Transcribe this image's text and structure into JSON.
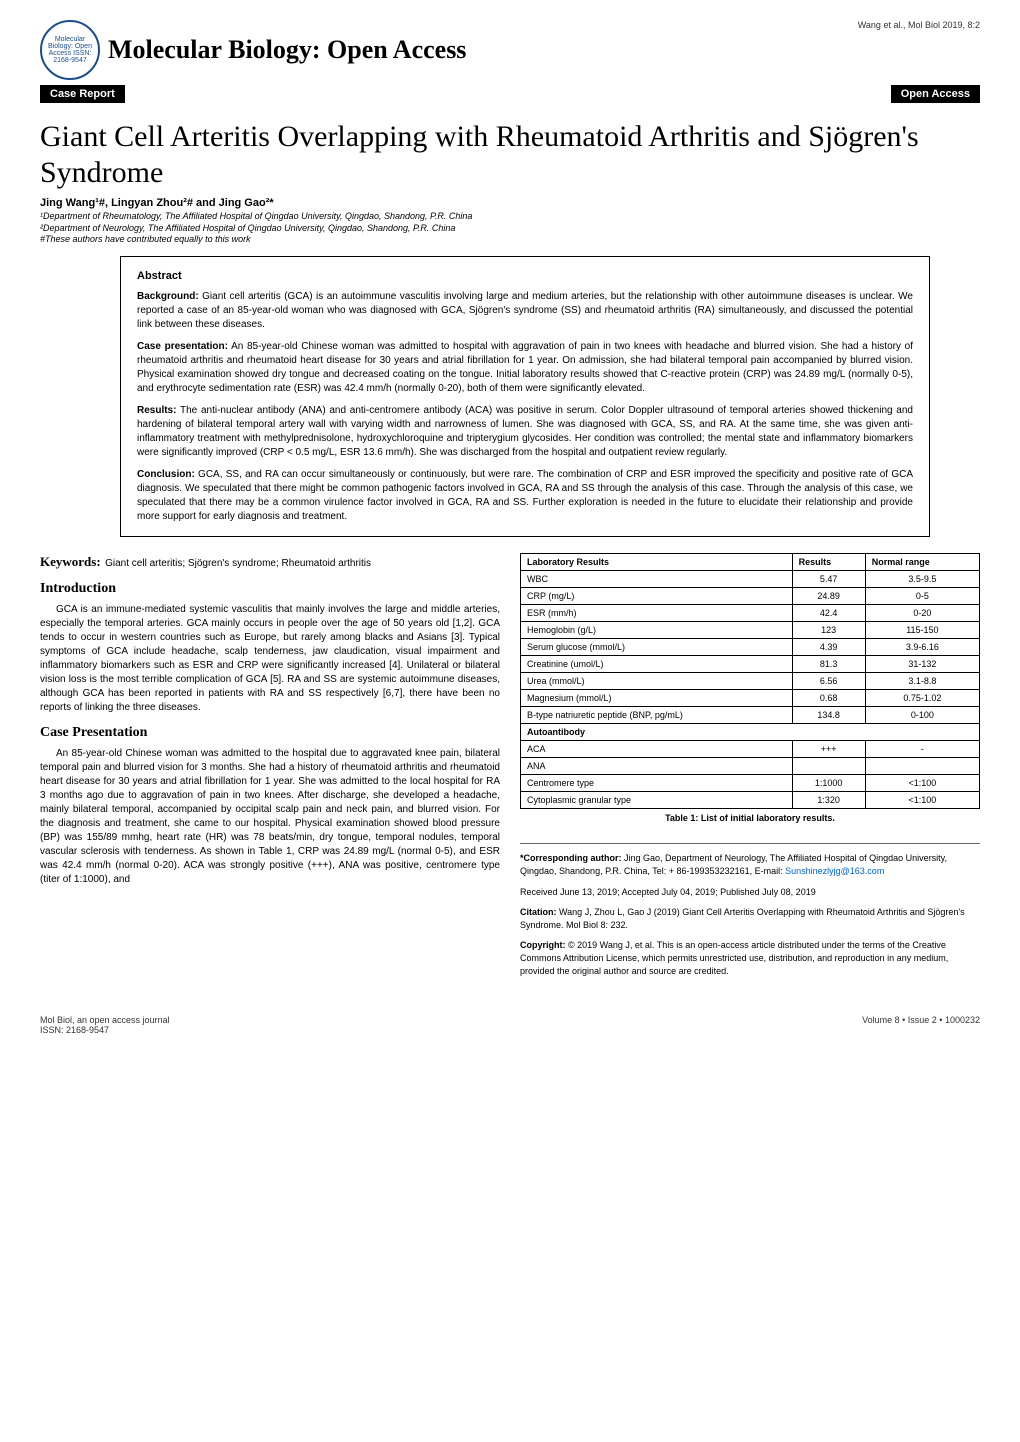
{
  "header": {
    "logo_text": "Molecular Biology: Open Access ISSN: 2168-9547",
    "journal_title": "Molecular Biology: Open Access",
    "right_text": "Wang et al., Mol Biol 2019, 8:2",
    "bar_left": "Case Report",
    "bar_right": "Open Access"
  },
  "title": "Giant Cell Arteritis Overlapping with Rheumatoid Arthritis and Sjögren's Syndrome",
  "authors": "Jing Wang¹#, Lingyan Zhou²# and Jing Gao²*",
  "affiliations": [
    "¹Department of Rheumatology, The Affiliated Hospital of Qingdao University, Qingdao, Shandong, P.R. China",
    "²Department of Neurology, The Affiliated Hospital of Qingdao University, Qingdao, Shandong, P.R. China",
    "#These authors have contributed equally to this work"
  ],
  "abstract": {
    "heading": "Abstract",
    "paras": [
      {
        "label": "Background:",
        "text": "Giant cell arteritis (GCA) is an autoimmune vasculitis involving large and medium arteries, but the relationship with other autoimmune diseases is unclear. We reported a case of an 85-year-old woman who was diagnosed with GCA, Sjögren's syndrome (SS) and rheumatoid arthritis (RA) simultaneously, and discussed the potential link between these diseases."
      },
      {
        "label": "Case presentation:",
        "text": "An 85-year-old Chinese woman was admitted to hospital with aggravation of pain in two knees with headache and blurred vision. She had a history of rheumatoid arthritis and rheumatoid heart disease for 30 years and atrial fibrillation for 1 year. On admission, she had bilateral temporal pain accompanied by blurred vision. Physical examination showed dry tongue and decreased coating on the tongue. Initial laboratory results showed that C-reactive protein (CRP) was 24.89 mg/L (normally 0-5), and erythrocyte sedimentation rate (ESR) was 42.4 mm/h (normally 0-20), both of them were significantly elevated."
      },
      {
        "label": "Results:",
        "text": "The anti-nuclear antibody (ANA) and anti-centromere antibody (ACA) was positive in serum. Color Doppler ultrasound of temporal arteries showed thickening and hardening of bilateral temporal artery wall with varying width and narrowness of lumen. She was diagnosed with GCA, SS, and RA. At the same time, she was given anti-inflammatory treatment with methylprednisolone, hydroxychloroquine and tripterygium glycosides. Her condition was controlled; the mental state and inflammatory biomarkers were significantly improved (CRP < 0.5 mg/L, ESR 13.6 mm/h). She was discharged from the hospital and outpatient review regularly."
      },
      {
        "label": "Conclusion:",
        "text": "GCA, SS, and RA can occur simultaneously or continuously, but were rare. The combination of CRP and ESR improved the specificity and positive rate of GCA diagnosis. We speculated that there might be common pathogenic factors involved in GCA, RA and SS through the analysis of this case. Through the analysis of this case, we speculated that there may be a common virulence factor involved in GCA, RA and SS. Further exploration is needed in the future to elucidate their relationship and provide more support for early diagnosis and treatment."
      }
    ]
  },
  "keywords": {
    "label": "Keywords:",
    "text": "Giant cell arteritis; Sjögren's syndrome; Rheumatoid arthritis"
  },
  "introduction": {
    "heading": "Introduction",
    "text": "GCA is an immune-mediated systemic vasculitis that mainly involves the large and middle arteries, especially the temporal arteries. GCA mainly occurs in people over the age of 50 years old [1,2]. GCA tends to occur in western countries such as Europe, but rarely among blacks and Asians [3]. Typical symptoms of GCA include headache, scalp tenderness, jaw claudication, visual impairment and inflammatory biomarkers such as ESR and CRP were significantly increased [4]. Unilateral or bilateral vision loss is the most terrible complication of GCA [5]. RA and SS are systemic autoimmune diseases, although GCA has been reported in patients with RA and SS respectively [6,7], there have been no reports of linking the three diseases."
  },
  "case": {
    "heading": "Case Presentation",
    "text": "An 85-year-old Chinese woman was admitted to the hospital due to aggravated knee pain, bilateral temporal pain and blurred vision for 3 months. She had a history of rheumatoid arthritis and rheumatoid heart disease for 30 years and atrial fibrillation for 1 year. She was admitted to the local hospital for RA 3 months ago due to aggravation of pain in two knees. After discharge, she developed a headache, mainly bilateral temporal, accompanied by occipital scalp pain and neck pain, and blurred vision. For the diagnosis and treatment, she came to our hospital. Physical examination showed blood pressure (BP) was 155/89 mmhg, heart rate (HR) was 78 beats/min, dry tongue, temporal nodules, temporal vascular sclerosis with tenderness. As shown in Table 1, CRP was 24.89 mg/L (normal 0-5), and ESR was 42.4 mm/h (normal 0-20). ACA was strongly positive (+++), ANA was positive, centromere type (titer of 1:1000), and"
  },
  "table1": {
    "columns": [
      "Laboratory Results",
      "Results",
      "Normal range"
    ],
    "rows": [
      [
        "WBC",
        "5.47",
        "3.5-9.5"
      ],
      [
        "CRP (mg/L)",
        "24.89",
        "0-5"
      ],
      [
        "ESR (mm/h)",
        "42.4",
        "0-20"
      ],
      [
        "Hemoglobin (g/L)",
        "123",
        "115-150"
      ],
      [
        "Serum glucose (mmol/L)",
        "4.39",
        "3.9-6.16"
      ],
      [
        "Creatinine (umol/L)",
        "81.3",
        "31-132"
      ],
      [
        "Urea (mmol/L)",
        "6.56",
        "3.1-8.8"
      ],
      [
        "Magnesium (mmol/L)",
        "0.68",
        "0.75-1.02"
      ],
      [
        "B-type natriuretic peptide (BNP, pg/mL)",
        "134.8",
        "0-100"
      ]
    ],
    "subheader": "Autoantibody",
    "rows2": [
      [
        "ACA",
        "+++",
        "-"
      ],
      [
        "ANA",
        "",
        ""
      ],
      [
        "Centromere type",
        "1:1000",
        "<1:100"
      ],
      [
        "Cytoplasmic granular type",
        "1:320",
        "<1:100"
      ]
    ],
    "caption": "Table 1: List of initial laboratory results."
  },
  "corresponding": {
    "p1_label": "*Corresponding author:",
    "p1_text": "Jing Gao, Department of Neurology, The Affiliated Hospital of Qingdao University, Qingdao, Shandong, P.R. China, Tel: + 86-199353232161, E-mail:",
    "p1_email": "Sunshinezlyjg@163.com",
    "p2": "Received June 13, 2019; Accepted July 04, 2019; Published July 08, 2019",
    "p3_label": "Citation:",
    "p3_text": "Wang J, Zhou L, Gao J (2019) Giant Cell Arteritis Overlapping with Rheumatoid Arthritis and Sjögren's Syndrome. Mol Biol 8: 232.",
    "p4_label": "Copyright:",
    "p4_text": "© 2019 Wang J, et al. This is an open-access article distributed under the terms of the Creative Commons Attribution License, which permits unrestricted use, distribution, and reproduction in any medium, provided the original author and source are credited."
  },
  "footer": {
    "left1": "Mol Biol, an open access journal",
    "left2": "ISSN: 2168-9547",
    "right": "Volume 8 • Issue 2 • 1000232"
  },
  "colors": {
    "logo_border": "#1a4d8f",
    "link": "#0066cc",
    "bar_bg": "#000000",
    "bar_fg": "#ffffff"
  }
}
